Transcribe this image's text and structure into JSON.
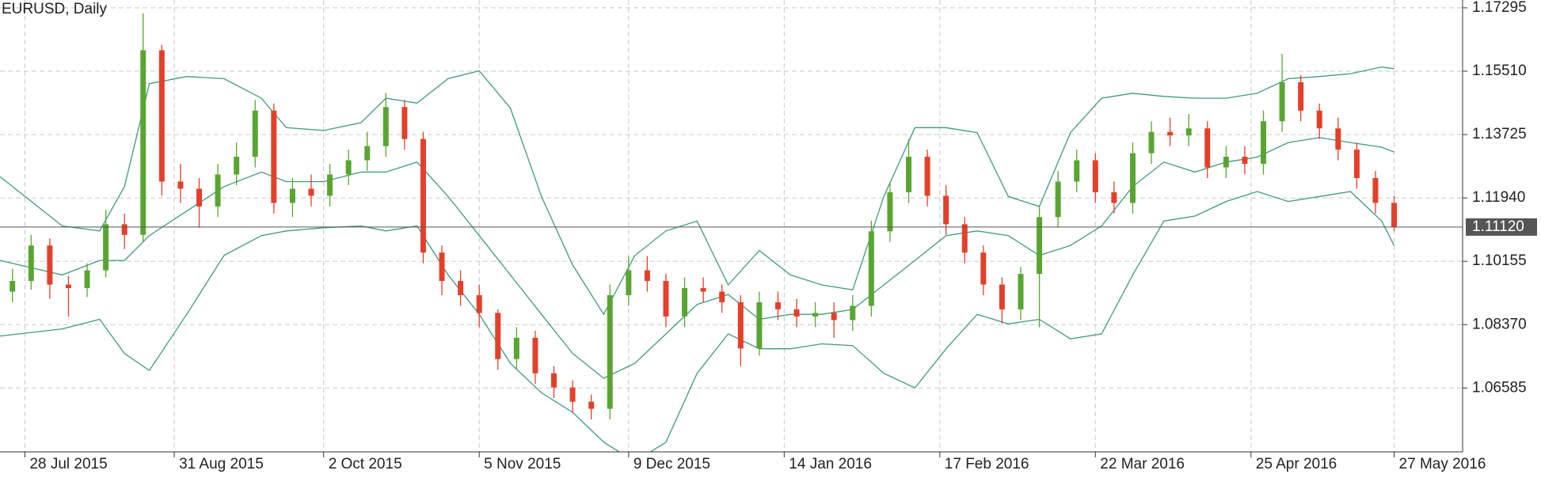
{
  "chart_data": {
    "type": "candlestick",
    "title": "EURUSD, Daily",
    "xlim": [
      0,
      235
    ],
    "ylim": [
      1.04786,
      1.17516
    ],
    "grid": true,
    "up_color": "#5aa532",
    "down_color": "#e3402b",
    "xticks": [
      {
        "value": 4,
        "label": "28 Jul 2015"
      },
      {
        "value": 28,
        "label": "31 Aug 2015"
      },
      {
        "value": 52,
        "label": "2 Oct 2015"
      },
      {
        "value": 77,
        "label": "5 Nov 2015"
      },
      {
        "value": 101,
        "label": "9 Dec 2015"
      },
      {
        "value": 126,
        "label": "14 Jan 2016"
      },
      {
        "value": 151,
        "label": "17 Feb 2016"
      },
      {
        "value": 176,
        "label": "22 Mar 2016"
      },
      {
        "value": 201,
        "label": "25 Apr 2016"
      },
      {
        "value": 224,
        "label": "27 May 2016"
      }
    ],
    "yticks": [
      1.17295,
      {
        "value": 1.1551,
        "label": "1.15510"
      },
      1.13725,
      {
        "value": 1.1194,
        "label": "1.11940"
      },
      {
        "value": 1.10155,
        "label": "1.10155"
      },
      {
        "value": 1.0837,
        "label": "1.08370"
      },
      1.06585
    ],
    "current_price": {
      "value": 1.1112,
      "label": "1.11120"
    },
    "candles": {
      "x": [
        2,
        5,
        8,
        11,
        14,
        17,
        20,
        23,
        26,
        29,
        32,
        35,
        38,
        41,
        44,
        47,
        50,
        53,
        56,
        59,
        62,
        65,
        68,
        71,
        74,
        77,
        80,
        83,
        86,
        89,
        92,
        95,
        98,
        101,
        104,
        107,
        110,
        113,
        116,
        119,
        122,
        125,
        128,
        131,
        134,
        137,
        140,
        143,
        146,
        149,
        152,
        155,
        158,
        161,
        164,
        167,
        170,
        173,
        176,
        179,
        182,
        185,
        188,
        191,
        194,
        197,
        200,
        203,
        206,
        209,
        212,
        215,
        218,
        221,
        224
      ],
      "open": [
        1.093,
        1.096,
        1.106,
        1.095,
        1.094,
        1.099,
        1.112,
        1.109,
        1.161,
        1.124,
        1.122,
        1.117,
        1.126,
        1.131,
        1.144,
        1.118,
        1.122,
        1.12,
        1.126,
        1.13,
        1.134,
        1.145,
        1.136,
        1.104,
        1.096,
        1.092,
        1.087,
        1.074,
        1.08,
        1.07,
        1.066,
        1.062,
        1.06,
        1.092,
        1.099,
        1.096,
        1.086,
        1.094,
        1.093,
        1.09,
        1.077,
        1.09,
        1.088,
        1.086,
        1.087,
        1.085,
        1.089,
        1.11,
        1.121,
        1.131,
        1.12,
        1.112,
        1.104,
        1.095,
        1.088,
        1.098,
        1.114,
        1.124,
        1.13,
        1.121,
        1.118,
        1.132,
        1.138,
        1.137,
        1.139,
        1.128,
        1.131,
        1.129,
        1.141,
        1.152,
        1.144,
        1.139,
        1.133,
        1.125,
        1.118
      ],
      "high": [
        1.0995,
        1.109,
        1.108,
        1.0975,
        1.101,
        1.116,
        1.115,
        1.1714,
        1.1625,
        1.129,
        1.125,
        1.129,
        1.135,
        1.147,
        1.146,
        1.125,
        1.126,
        1.129,
        1.133,
        1.138,
        1.149,
        1.147,
        1.138,
        1.106,
        1.099,
        1.095,
        1.088,
        1.083,
        1.082,
        1.072,
        1.068,
        1.064,
        1.095,
        1.103,
        1.103,
        1.098,
        1.097,
        1.097,
        1.095,
        1.092,
        1.093,
        1.093,
        1.091,
        1.09,
        1.09,
        1.092,
        1.113,
        1.124,
        1.136,
        1.133,
        1.123,
        1.114,
        1.106,
        1.097,
        1.1,
        1.117,
        1.127,
        1.133,
        1.132,
        1.124,
        1.135,
        1.141,
        1.142,
        1.143,
        1.141,
        1.134,
        1.134,
        1.144,
        1.16,
        1.154,
        1.146,
        1.142,
        1.135,
        1.127,
        1.12
      ],
      "low": [
        1.09,
        1.0935,
        1.091,
        1.086,
        1.0915,
        1.097,
        1.105,
        1.107,
        1.12,
        1.118,
        1.111,
        1.114,
        1.123,
        1.128,
        1.115,
        1.114,
        1.117,
        1.117,
        1.123,
        1.127,
        1.131,
        1.133,
        1.101,
        1.092,
        1.089,
        1.083,
        1.071,
        1.071,
        1.067,
        1.063,
        1.059,
        1.057,
        1.057,
        1.089,
        1.093,
        1.083,
        1.083,
        1.09,
        1.087,
        1.072,
        1.075,
        1.085,
        1.083,
        1.083,
        1.08,
        1.082,
        1.086,
        1.107,
        1.118,
        1.117,
        1.109,
        1.101,
        1.092,
        1.084,
        1.085,
        1.083,
        1.111,
        1.121,
        1.118,
        1.115,
        1.115,
        1.129,
        1.134,
        1.134,
        1.125,
        1.125,
        1.126,
        1.126,
        1.138,
        1.141,
        1.136,
        1.13,
        1.122,
        1.115,
        1.11
      ],
      "close": [
        1.096,
        1.106,
        1.095,
        1.094,
        1.099,
        1.112,
        1.109,
        1.161,
        1.124,
        1.122,
        1.117,
        1.126,
        1.131,
        1.144,
        1.118,
        1.122,
        1.12,
        1.126,
        1.13,
        1.134,
        1.145,
        1.136,
        1.104,
        1.096,
        1.092,
        1.087,
        1.074,
        1.08,
        1.07,
        1.066,
        1.062,
        1.06,
        1.092,
        1.099,
        1.096,
        1.086,
        1.094,
        1.093,
        1.09,
        1.077,
        1.09,
        1.088,
        1.086,
        1.087,
        1.085,
        1.089,
        1.11,
        1.121,
        1.131,
        1.12,
        1.112,
        1.104,
        1.095,
        1.088,
        1.098,
        1.114,
        1.124,
        1.13,
        1.121,
        1.118,
        1.132,
        1.138,
        1.137,
        1.139,
        1.128,
        1.131,
        1.129,
        1.141,
        1.152,
        1.144,
        1.139,
        1.133,
        1.125,
        1.118,
        1.1112
      ]
    },
    "bands": {
      "color": "#3f9a7c",
      "x": [
        0,
        10,
        16,
        20,
        24,
        30,
        36,
        42,
        46,
        52,
        58,
        62,
        67,
        72,
        77,
        82,
        87,
        92,
        97,
        102,
        107,
        112,
        117,
        122,
        127,
        132,
        137,
        142,
        147,
        152,
        157,
        162,
        167,
        172,
        177,
        182,
        187,
        192,
        197,
        202,
        207,
        212,
        217,
        222,
        224
      ],
      "series": [
        {
          "values": [
            1.1254,
            1.1115,
            1.1101,
            1.1226,
            1.1516,
            1.1536,
            1.153,
            1.1475,
            1.1392,
            1.1384,
            1.1406,
            1.1475,
            1.1461,
            1.153,
            1.1552,
            1.1447,
            1.1198,
            1.1005,
            1.0866,
            1.1032,
            1.1101,
            1.1129,
            1.0949,
            1.1046,
            1.0977,
            1.0949,
            1.0935,
            1.1198,
            1.1392,
            1.1392,
            1.1378,
            1.1198,
            1.117,
            1.1378,
            1.1475,
            1.1489,
            1.148,
            1.1475,
            1.1475,
            1.1489,
            1.153,
            1.1536,
            1.1544,
            1.1563,
            1.1558
          ]
        },
        {
          "values": [
            1.1018,
            1.0977,
            1.1018,
            1.1018,
            1.1088,
            1.1157,
            1.1226,
            1.1267,
            1.124,
            1.124,
            1.1267,
            1.1267,
            1.1295,
            1.1198,
            1.1088,
            1.0977,
            1.0866,
            1.0756,
            1.0686,
            1.0728,
            1.0811,
            1.0894,
            1.0922,
            1.0852,
            1.0866,
            1.0866,
            1.088,
            1.0949,
            1.1018,
            1.1088,
            1.1101,
            1.1088,
            1.1032,
            1.106,
            1.1115,
            1.1226,
            1.1295,
            1.1267,
            1.1295,
            1.1309,
            1.135,
            1.1364,
            1.135,
            1.1337,
            1.1323
          ]
        },
        {
          "values": [
            1.0805,
            1.0825,
            1.0852,
            1.0756,
            1.0708,
            1.0866,
            1.1032,
            1.1088,
            1.1101,
            1.111,
            1.1115,
            1.1101,
            1.1115,
            1.0977,
            1.0866,
            1.0728,
            1.0645,
            1.059,
            1.0506,
            1.0451,
            1.0506,
            1.07,
            1.0811,
            1.0769,
            1.0769,
            1.0783,
            1.0778,
            1.07,
            1.0659,
            1.0769,
            1.0866,
            1.0839,
            1.0852,
            1.0797,
            1.0811,
            1.0977,
            1.1129,
            1.1143,
            1.1184,
            1.1212,
            1.1184,
            1.1198,
            1.1212,
            1.1129,
            1.106
          ]
        }
      ]
    }
  }
}
